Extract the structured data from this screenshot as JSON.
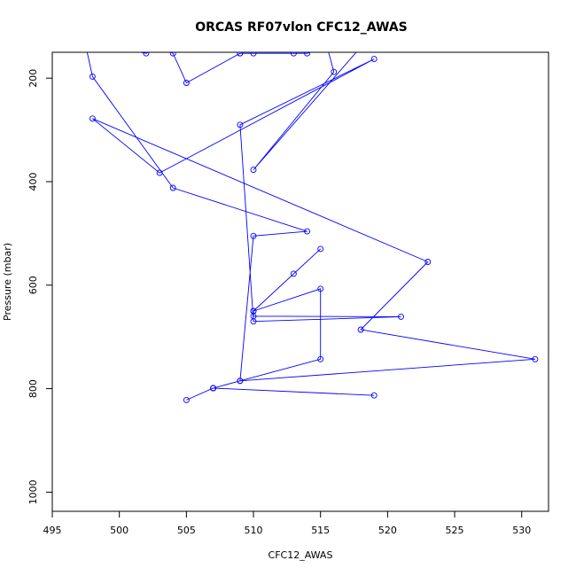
{
  "chart_data": {
    "type": "line",
    "title": "ORCAS RF07vlon CFC12_AWAS",
    "xlabel": "CFC12_AWAS",
    "ylabel": "Pressure (mbar)",
    "xlim": [
      495,
      532
    ],
    "ylim": [
      1037,
      150
    ],
    "y_reversed": true,
    "x_ticks": [
      495,
      500,
      505,
      510,
      515,
      520,
      525,
      530
    ],
    "y_ticks": [
      200,
      400,
      600,
      800,
      1000
    ],
    "grid": false,
    "legend": "none",
    "series_color": "#0000ff",
    "marker": "open-circle",
    "x": [
      505.0,
      507.0,
      519.0,
      507.0,
      509.0,
      515.0,
      515.0,
      510.0,
      513.0,
      515.0,
      510.0,
      510.0,
      521.0,
      510.0,
      509.0,
      519.0,
      503.0,
      498.0,
      523.0,
      518.0,
      531.0,
      509.0,
      510.0,
      514.0,
      504.0,
      498.0,
      497.5,
      499.0,
      502.0,
      503.0,
      504.0,
      505.0,
      509.0,
      509.0,
      510.0,
      513.0,
      514.0,
      515.5,
      516.0,
      510.0,
      518.0,
      519.0
    ],
    "y": [
      822,
      799,
      813,
      799,
      785,
      743,
      607,
      650,
      578,
      530,
      650,
      660,
      661,
      670,
      290,
      163,
      383,
      278,
      555,
      686,
      743,
      785,
      505,
      496,
      412,
      197,
      138,
      138,
      152,
      140,
      152,
      209,
      152,
      152,
      152,
      152,
      152,
      140,
      188,
      377,
      140,
      140
    ]
  }
}
